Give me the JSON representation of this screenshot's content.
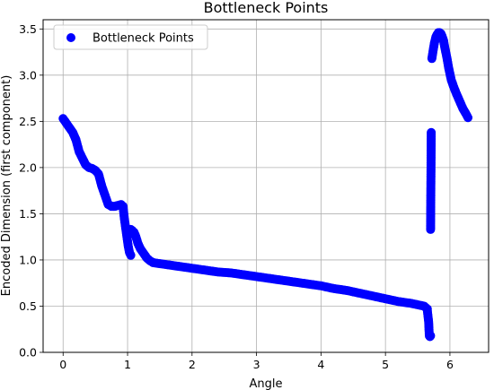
{
  "chart_data": {
    "type": "scatter",
    "title": "Bottleneck Points",
    "xlabel": "Angle",
    "ylabel": "Encoded Dimension (first component)",
    "xlim": [
      -0.31,
      6.6
    ],
    "ylim": [
      0.0,
      3.6
    ],
    "xticks": [
      0,
      1,
      2,
      3,
      4,
      5,
      6
    ],
    "xtick_labels": [
      "0",
      "1",
      "2",
      "3",
      "4",
      "5",
      "6"
    ],
    "yticks": [
      0.0,
      0.5,
      1.0,
      1.5,
      2.0,
      2.5,
      3.0,
      3.5
    ],
    "ytick_labels": [
      "0.0",
      "0.5",
      "1.0",
      "1.5",
      "2.0",
      "2.5",
      "3.0",
      "3.5"
    ],
    "grid": true,
    "legend": {
      "placement": "upper-left",
      "entries": [
        "Bottleneck Points"
      ]
    },
    "series": [
      {
        "name": "Bottleneck Points",
        "color": "#0000ff",
        "marker": "circle",
        "segments": [
          {
            "x": [
              0.0,
              0.05,
              0.1,
              0.15,
              0.2,
              0.25,
              0.3,
              0.35,
              0.4,
              0.45,
              0.5,
              0.55,
              0.6,
              0.65,
              0.7,
              0.75,
              0.8,
              0.85,
              0.9,
              0.93
            ],
            "y": [
              2.53,
              2.48,
              2.43,
              2.38,
              2.3,
              2.17,
              2.1,
              2.03,
              2.0,
              1.99,
              1.97,
              1.93,
              1.8,
              1.7,
              1.6,
              1.58,
              1.58,
              1.59,
              1.6,
              1.58
            ]
          },
          {
            "x": [
              0.93,
              0.95,
              0.97,
              0.99,
              1.01,
              1.03,
              1.05
            ],
            "y": [
              1.58,
              1.45,
              1.35,
              1.25,
              1.15,
              1.08,
              1.05
            ]
          },
          {
            "x": [
              1.05,
              1.07,
              1.1,
              1.13,
              1.16,
              1.2,
              1.25,
              1.3,
              1.35,
              1.4
            ],
            "y": [
              1.33,
              1.32,
              1.3,
              1.25,
              1.18,
              1.12,
              1.07,
              1.02,
              0.99,
              0.97
            ]
          },
          {
            "x": [
              1.4,
              1.6,
              1.8,
              2.0,
              2.2,
              2.4,
              2.6,
              2.8,
              3.0,
              3.2,
              3.4,
              3.6,
              3.8,
              4.0,
              4.2,
              4.4,
              4.6,
              4.8,
              5.0,
              5.2,
              5.4,
              5.6,
              5.65
            ],
            "y": [
              0.97,
              0.95,
              0.93,
              0.91,
              0.89,
              0.87,
              0.86,
              0.84,
              0.82,
              0.8,
              0.78,
              0.76,
              0.74,
              0.72,
              0.69,
              0.67,
              0.64,
              0.61,
              0.58,
              0.55,
              0.53,
              0.5,
              0.47
            ]
          },
          {
            "x": [
              5.65,
              5.67,
              5.68,
              5.69,
              5.7
            ],
            "y": [
              0.45,
              0.33,
              0.18,
              0.17,
              0.18
            ]
          },
          {
            "x": [
              5.7,
              5.71
            ],
            "y": [
              1.33,
              2.38
            ]
          },
          {
            "x": [
              5.72,
              5.74,
              5.76,
              5.78,
              5.8,
              5.82,
              5.84,
              5.86,
              5.88,
              5.9,
              5.92,
              5.95,
              5.98,
              6.02,
              6.06,
              6.1,
              6.15,
              6.2,
              6.25,
              6.28
            ],
            "y": [
              3.18,
              3.27,
              3.35,
              3.41,
              3.44,
              3.46,
              3.46,
              3.45,
              3.42,
              3.38,
              3.3,
              3.2,
              3.08,
              2.95,
              2.87,
              2.8,
              2.72,
              2.64,
              2.58,
              2.54
            ]
          }
        ]
      }
    ]
  }
}
